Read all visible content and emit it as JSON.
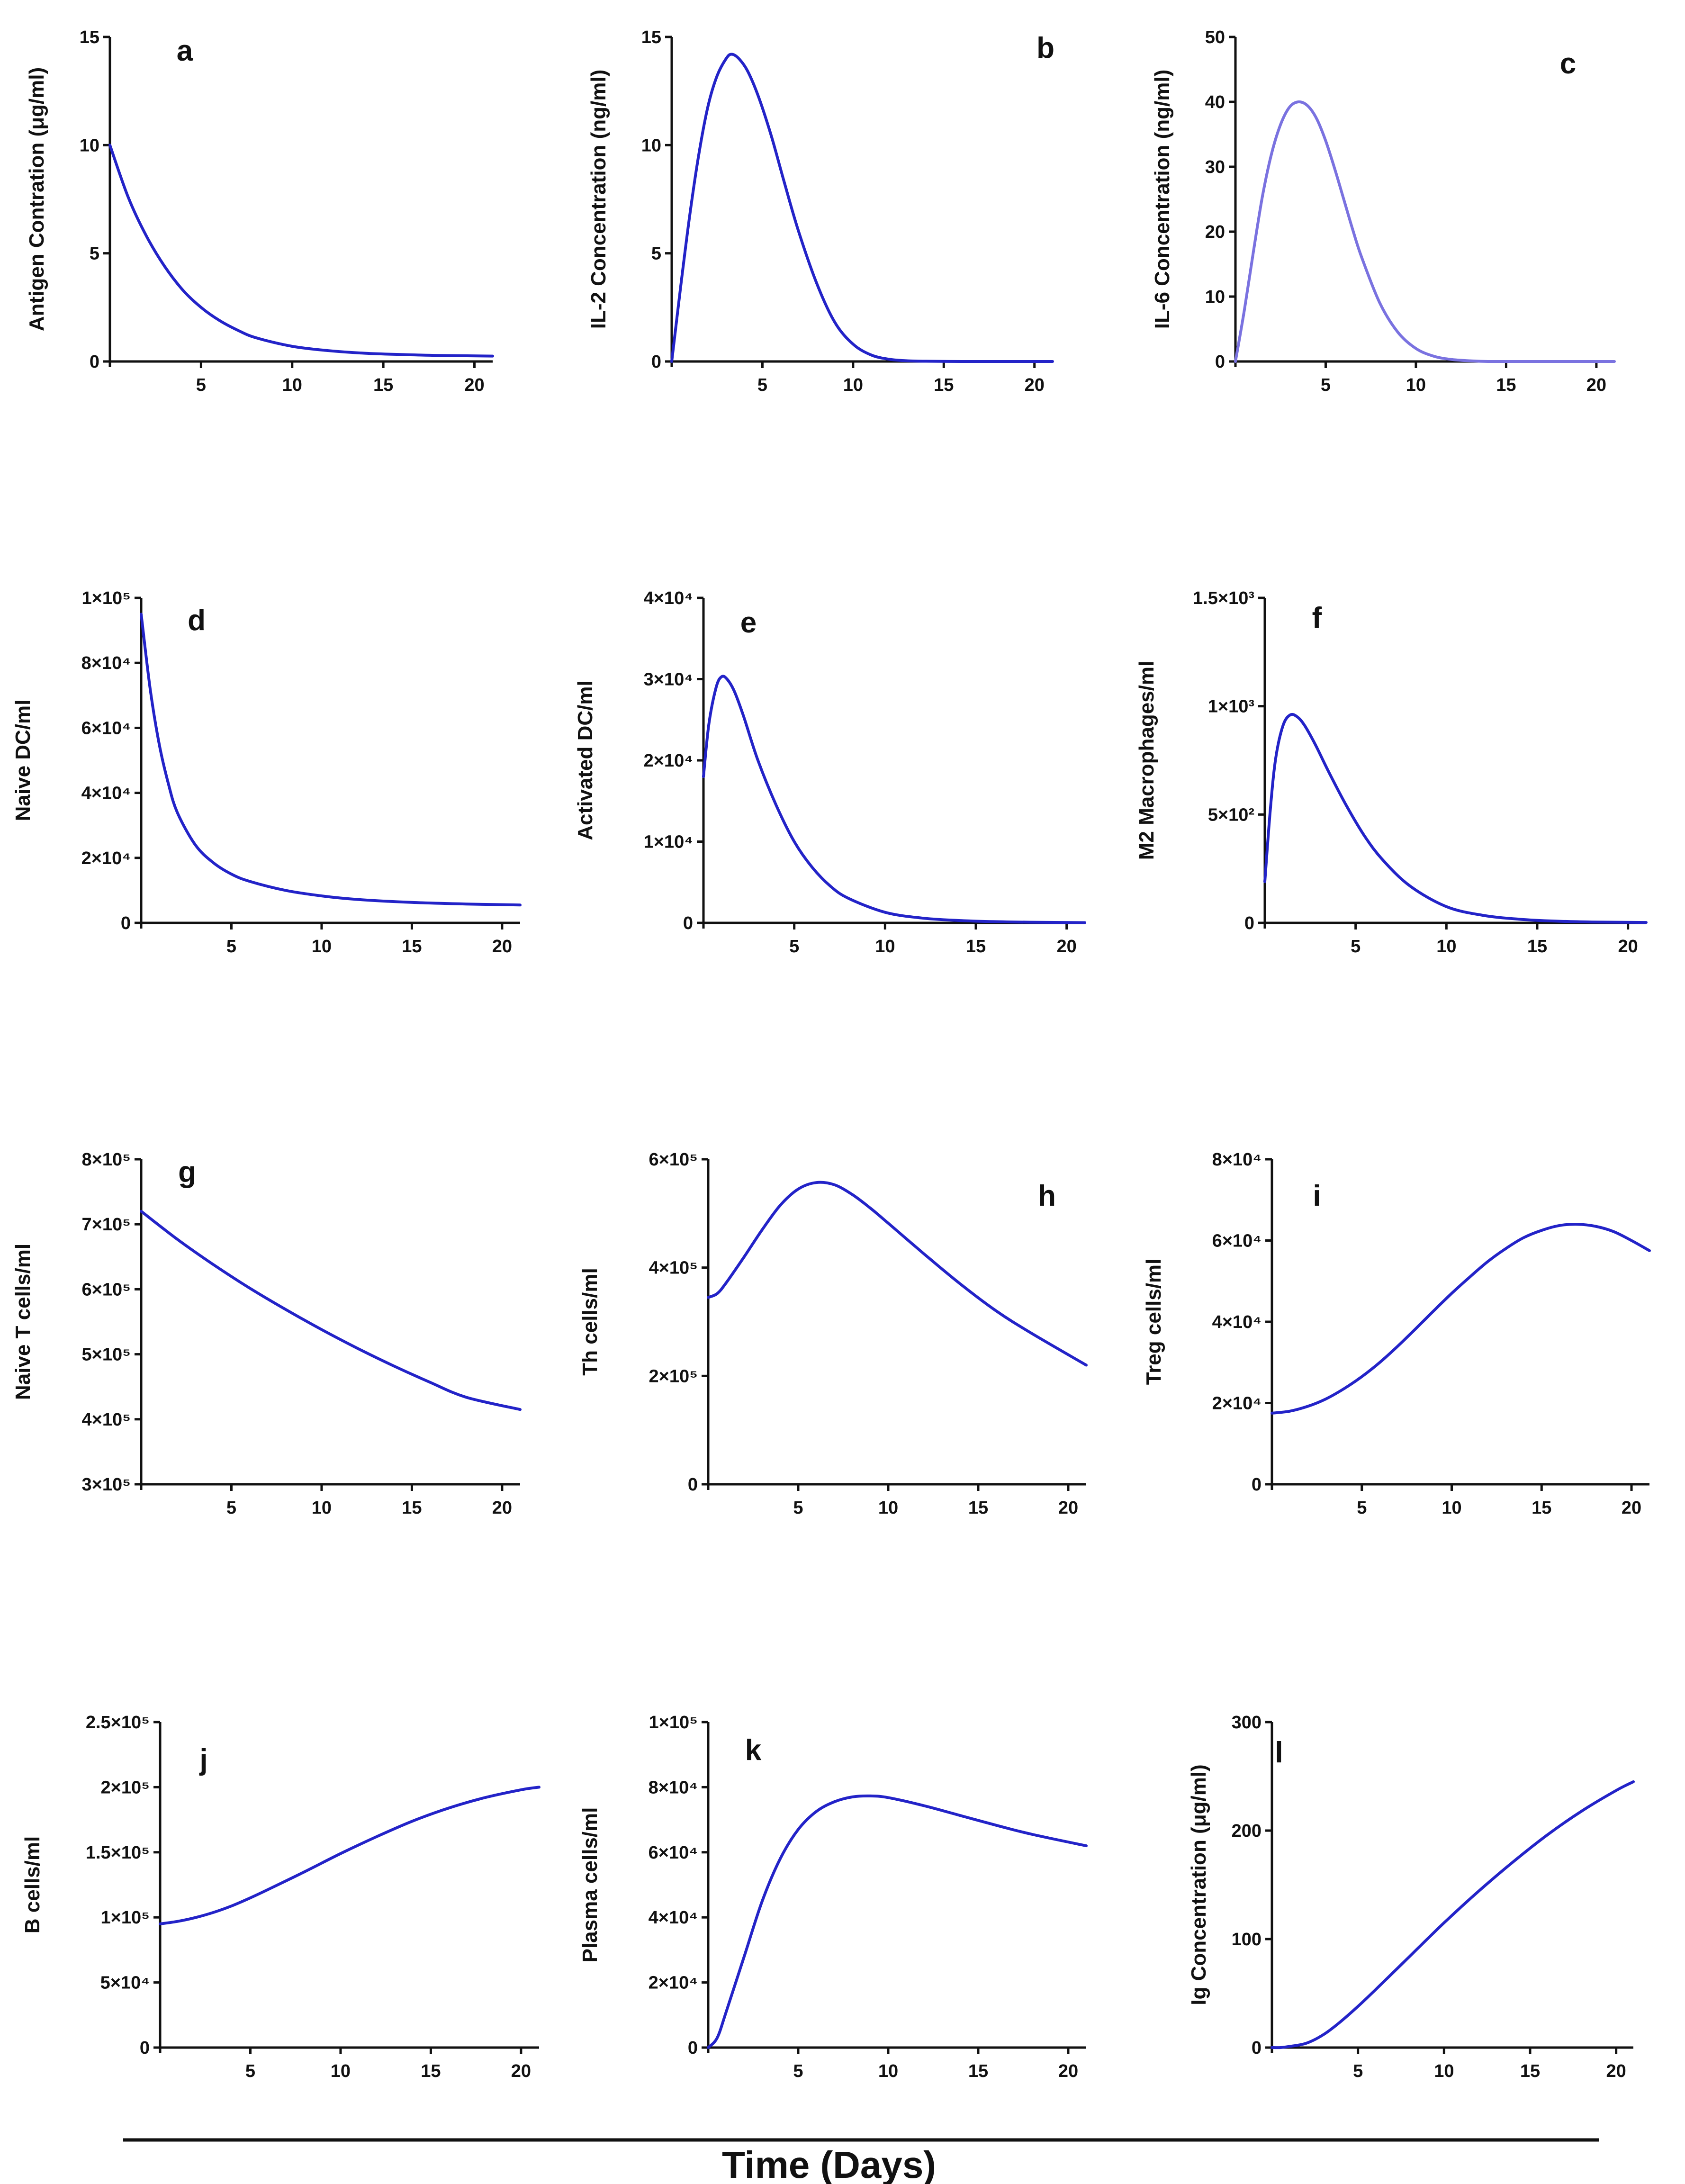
{
  "colors": {
    "curve": "#2323c8",
    "curve_light": "#7a72e0",
    "axis": "#111111"
  },
  "x_axis_title": "Time (Days)",
  "chart_data": [
    {
      "id": "a",
      "panel_label": "a",
      "type": "line",
      "ylabel": "Antigen Contration (μg/ml)",
      "xlim": [
        0,
        21
      ],
      "ylim": [
        0,
        15
      ],
      "xticks": [
        "5",
        "10",
        "15",
        "20"
      ],
      "xtick_values": [
        5,
        10,
        15,
        20
      ],
      "yticks": [
        "0",
        "5",
        "10",
        "15"
      ],
      "ytick_values": [
        0,
        5,
        10,
        15
      ],
      "x": [
        0,
        1,
        2,
        3,
        4,
        5,
        6,
        7,
        8,
        10,
        12,
        14,
        16,
        18,
        21
      ],
      "y": [
        10,
        7.6,
        5.8,
        4.4,
        3.3,
        2.5,
        1.9,
        1.45,
        1.1,
        0.7,
        0.5,
        0.38,
        0.32,
        0.28,
        0.25
      ]
    },
    {
      "id": "b",
      "panel_label": "b",
      "type": "line",
      "ylabel": "IL-2 Concentration (ng/ml)",
      "xlim": [
        0,
        21
      ],
      "ylim": [
        0,
        15
      ],
      "xticks": [
        "5",
        "10",
        "15",
        "20"
      ],
      "xtick_values": [
        5,
        10,
        15,
        20
      ],
      "yticks": [
        "0",
        "5",
        "10",
        "15"
      ],
      "ytick_values": [
        0,
        5,
        10,
        15
      ],
      "x": [
        0,
        0.5,
        1,
        1.5,
        2,
        2.5,
        3,
        3.3,
        3.7,
        4.2,
        4.8,
        5.5,
        6.2,
        7,
        8,
        9,
        10,
        11,
        12,
        13,
        14,
        16,
        18,
        21
      ],
      "y": [
        0,
        3.5,
        6.8,
        9.6,
        11.8,
        13.2,
        14.0,
        14.2,
        14.0,
        13.4,
        12.2,
        10.4,
        8.3,
        6.0,
        3.6,
        1.8,
        0.8,
        0.3,
        0.1,
        0.03,
        0.01,
        0,
        0,
        0
      ]
    },
    {
      "id": "c",
      "panel_label": "c",
      "type": "line",
      "ylabel": "IL-6 Concentration (ng/ml)",
      "xlim": [
        0,
        21
      ],
      "ylim": [
        0,
        50
      ],
      "xticks": [
        "5",
        "10",
        "15",
        "20"
      ],
      "xtick_values": [
        5,
        10,
        15,
        20
      ],
      "yticks": [
        "0",
        "10",
        "20",
        "30",
        "40",
        "50"
      ],
      "ytick_values": [
        0,
        10,
        20,
        30,
        40,
        50
      ],
      "x": [
        0,
        0.5,
        1,
        1.5,
        2,
        2.5,
        3,
        3.5,
        4,
        4.5,
        5,
        5.5,
        6,
        6.5,
        7,
        8,
        9,
        10,
        11,
        12,
        13,
        14,
        16,
        18,
        21
      ],
      "y": [
        0,
        8,
        17,
        25.5,
        32,
        36.5,
        39.2,
        40,
        39.4,
        37.4,
        34,
        29.7,
        25,
        20.3,
        16,
        9,
        4.5,
        2,
        0.8,
        0.3,
        0.1,
        0,
        0,
        0,
        0
      ]
    },
    {
      "id": "d",
      "panel_label": "d",
      "type": "line",
      "ylabel": "Naive DC/ml",
      "xlim": [
        0,
        21
      ],
      "ylim": [
        0,
        100000
      ],
      "xticks": [
        "5",
        "10",
        "15",
        "20"
      ],
      "xtick_values": [
        5,
        10,
        15,
        20
      ],
      "yticks": [
        "0",
        "2×10⁴",
        "4×10⁴",
        "6×10⁴",
        "8×10⁴",
        "1×10⁵"
      ],
      "ytick_values": [
        0,
        20000,
        40000,
        60000,
        80000,
        100000
      ],
      "x": [
        0,
        0.5,
        1,
        1.5,
        2,
        3,
        4,
        5,
        6,
        8,
        10,
        12,
        15,
        18,
        21
      ],
      "y": [
        95000,
        72000,
        55000,
        43000,
        34000,
        24000,
        18500,
        15000,
        12800,
        10000,
        8300,
        7200,
        6300,
        5800,
        5500
      ]
    },
    {
      "id": "e",
      "panel_label": "e",
      "type": "line",
      "ylabel": "Activated DC/ml",
      "xlim": [
        0,
        21
      ],
      "ylim": [
        0,
        40000
      ],
      "xticks": [
        "5",
        "10",
        "15",
        "20"
      ],
      "xtick_values": [
        5,
        10,
        15,
        20
      ],
      "yticks": [
        "0",
        "1×10⁴",
        "2×10⁴",
        "3×10⁴",
        "4×10⁴"
      ],
      "ytick_values": [
        0,
        10000,
        20000,
        30000,
        40000
      ],
      "x": [
        0,
        0.3,
        0.7,
        1,
        1.3,
        1.7,
        2.2,
        3,
        4,
        5,
        6,
        7,
        8,
        10,
        12,
        14,
        16,
        18,
        21
      ],
      "y": [
        18000,
        24500,
        29000,
        30300,
        30000,
        28500,
        25500,
        20000,
        14500,
        10000,
        6800,
        4500,
        3000,
        1300,
        600,
        300,
        150,
        80,
        30
      ]
    },
    {
      "id": "f",
      "panel_label": "f",
      "type": "line",
      "ylabel": "M2 Macrophages/ml",
      "xlim": [
        0,
        21
      ],
      "ylim": [
        0,
        1500
      ],
      "xticks": [
        "5",
        "10",
        "15",
        "20"
      ],
      "xtick_values": [
        5,
        10,
        15,
        20
      ],
      "yticks": [
        "0",
        "5×10²",
        "1×10³",
        "1.5×10³"
      ],
      "ytick_values": [
        0,
        500,
        1000,
        1500
      ],
      "x": [
        0,
        0.3,
        0.6,
        1,
        1.4,
        1.8,
        2.2,
        2.8,
        3.5,
        4.5,
        5.5,
        6.5,
        8,
        10,
        12,
        14,
        16,
        18,
        21
      ],
      "y": [
        190,
        520,
        760,
        910,
        960,
        950,
        910,
        820,
        700,
        540,
        400,
        290,
        170,
        75,
        35,
        17,
        8,
        4,
        2
      ]
    },
    {
      "id": "g",
      "panel_label": "g",
      "type": "line",
      "ylabel": "Naive T cells/ml",
      "xlim": [
        0,
        21
      ],
      "ylim": [
        300000,
        800000
      ],
      "xticks": [
        "5",
        "10",
        "15",
        "20"
      ],
      "xtick_values": [
        5,
        10,
        15,
        20
      ],
      "yticks": [
        "3×10⁵",
        "4×10⁵",
        "5×10⁵",
        "6×10⁵",
        "7×10⁵",
        "8×10⁵"
      ],
      "ytick_values": [
        300000,
        400000,
        500000,
        600000,
        700000,
        800000
      ],
      "x": [
        0,
        2,
        4,
        6,
        8,
        10,
        12,
        14,
        16,
        18,
        21
      ],
      "y": [
        720000,
        677000,
        638000,
        602000,
        569000,
        538000,
        509000,
        482000,
        457000,
        434000,
        415000
      ]
    },
    {
      "id": "h",
      "panel_label": "h",
      "type": "line",
      "ylabel": "Th cells/ml",
      "xlim": [
        0,
        21
      ],
      "ylim": [
        0,
        600000
      ],
      "xticks": [
        "5",
        "10",
        "15",
        "20"
      ],
      "xtick_values": [
        5,
        10,
        15,
        20
      ],
      "yticks": [
        "0",
        "2×10⁵",
        "4×10⁵",
        "6×10⁵"
      ],
      "ytick_values": [
        0,
        200000,
        400000,
        600000
      ],
      "x": [
        0,
        0.5,
        1,
        2,
        3,
        4,
        5,
        6,
        7,
        8,
        9,
        10,
        12,
        14,
        16,
        18,
        21
      ],
      "y": [
        345000,
        352000,
        372000,
        420000,
        470000,
        515000,
        545000,
        557000,
        553000,
        535000,
        510000,
        482000,
        425000,
        370000,
        320000,
        278000,
        220000
      ]
    },
    {
      "id": "i",
      "panel_label": "i",
      "type": "line",
      "ylabel": "Treg cells/ml",
      "xlim": [
        0,
        21
      ],
      "ylim": [
        0,
        80000
      ],
      "xticks": [
        "5",
        "10",
        "15",
        "20"
      ],
      "xtick_values": [
        5,
        10,
        15,
        20
      ],
      "yticks": [
        "0",
        "2×10⁴",
        "4×10⁴",
        "6×10⁴",
        "8×10⁴"
      ],
      "ytick_values": [
        0,
        20000,
        40000,
        60000,
        80000
      ],
      "x": [
        0,
        1,
        2,
        3,
        4,
        5,
        6,
        7,
        8,
        9,
        10,
        11,
        12,
        13,
        14,
        15,
        16,
        17,
        18,
        19,
        20,
        21
      ],
      "y": [
        17500,
        18000,
        19200,
        21000,
        23500,
        26500,
        30000,
        34000,
        38300,
        42700,
        47000,
        51000,
        54800,
        58000,
        60700,
        62500,
        63700,
        64000,
        63500,
        62200,
        60000,
        57500
      ]
    },
    {
      "id": "j",
      "panel_label": "j",
      "type": "line",
      "ylabel": "B cells/ml",
      "xlim": [
        0,
        21
      ],
      "ylim": [
        0,
        250000
      ],
      "xticks": [
        "5",
        "10",
        "15",
        "20"
      ],
      "xtick_values": [
        5,
        10,
        15,
        20
      ],
      "yticks": [
        "0",
        "5×10⁴",
        "1×10⁵",
        "1.5×10⁵",
        "2×10⁵",
        "2.5×10⁵"
      ],
      "ytick_values": [
        0,
        50000,
        100000,
        150000,
        200000,
        250000
      ],
      "x": [
        0,
        1,
        2,
        3,
        4,
        5,
        6,
        8,
        10,
        12,
        14,
        16,
        18,
        20,
        21
      ],
      "y": [
        95000,
        97000,
        100000,
        104000,
        109000,
        115000,
        121500,
        135000,
        149000,
        162000,
        174000,
        184000,
        192000,
        198000,
        200000
      ]
    },
    {
      "id": "k",
      "panel_label": "k",
      "type": "line",
      "ylabel": "Plasma cells/ml",
      "xlim": [
        0,
        21
      ],
      "ylim": [
        0,
        100000
      ],
      "xticks": [
        "5",
        "10",
        "15",
        "20"
      ],
      "xtick_values": [
        5,
        10,
        15,
        20
      ],
      "yticks": [
        "0",
        "2×10⁴",
        "4×10⁴",
        "6×10⁴",
        "8×10⁴",
        "1×10⁵"
      ],
      "ytick_values": [
        0,
        20000,
        40000,
        60000,
        80000,
        100000
      ],
      "x": [
        0,
        0.5,
        1,
        2,
        3,
        4,
        5,
        6,
        7,
        8,
        9,
        10,
        12,
        14,
        16,
        18,
        21
      ],
      "y": [
        0,
        3000,
        11000,
        28000,
        45000,
        58000,
        67000,
        72500,
        75500,
        77000,
        77300,
        76800,
        74300,
        71300,
        68300,
        65500,
        62000
      ]
    },
    {
      "id": "l",
      "panel_label": "l",
      "type": "line",
      "ylabel": "Ig Concentration (μg/ml)",
      "xlim": [
        0,
        21
      ],
      "ylim": [
        0,
        300
      ],
      "xticks": [
        "5",
        "10",
        "15",
        "20"
      ],
      "xtick_values": [
        5,
        10,
        15,
        20
      ],
      "yticks": [
        "0",
        "100",
        "200",
        "300"
      ],
      "ytick_values": [
        0,
        100,
        200,
        300
      ],
      "x": [
        0,
        0.5,
        1,
        2,
        3,
        4,
        5,
        6,
        8,
        10,
        12,
        14,
        16,
        18,
        20,
        21
      ],
      "y": [
        0,
        0,
        1,
        4,
        12,
        24,
        38,
        53,
        84,
        115,
        144,
        171,
        196,
        218,
        237,
        245
      ]
    }
  ]
}
